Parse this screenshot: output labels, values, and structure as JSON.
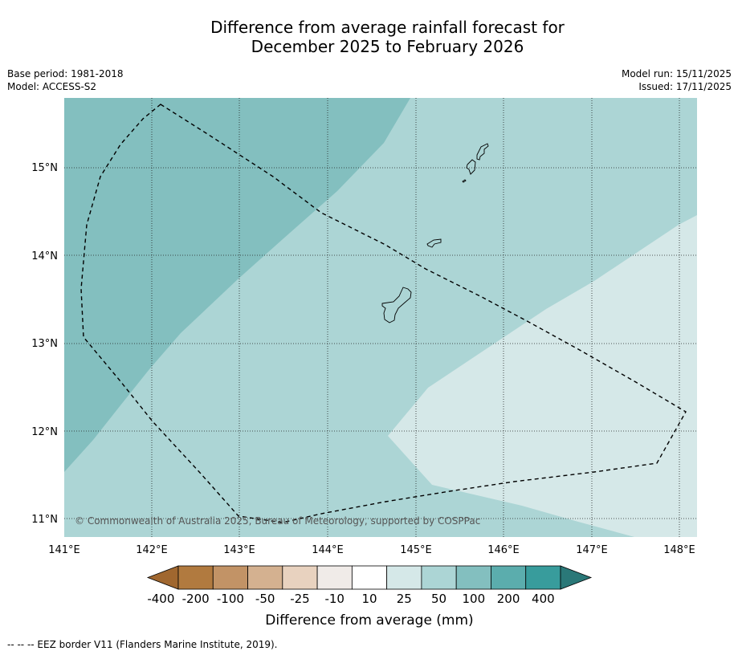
{
  "title": {
    "line1": "Difference from average rainfall forecast for",
    "line2": "December 2025 to February 2026"
  },
  "meta": {
    "base_period": "Base period: 1981-2018",
    "model": "Model: ACCESS-S2",
    "model_run": "Model run: 15/11/2025",
    "issued": "Issued: 17/11/2025"
  },
  "map": {
    "lon_labels": [
      "141°E",
      "142°E",
      "143°E",
      "144°E",
      "145°E",
      "146°E",
      "147°E",
      "148°E"
    ],
    "lat_labels": [
      "15°N",
      "14°N",
      "13°N",
      "12°N",
      "11°N"
    ],
    "copyright": "© Commonwealth of Australia 2025, Bureau of Meteorology, supported by COSPPac",
    "category_colors": {
      "10_to_25": "#d5e8e8",
      "25_to_50": "#acd5d5",
      "50_to_100": "#83bfbf"
    }
  },
  "colorbar": {
    "ticks": [
      "-400",
      "-200",
      "-100",
      "-50",
      "-25",
      "-10",
      "10",
      "25",
      "50",
      "100",
      "200",
      "400"
    ],
    "colors": [
      "#b17a3f",
      "#c29366",
      "#d4b190",
      "#e8d2bf",
      "#f0ebe8",
      "#ffffff",
      "#d5e8e8",
      "#acd5d5",
      "#83bfbf",
      "#5badad",
      "#389c9c"
    ],
    "under_color": "#a0672f",
    "over_color": "#2a7878",
    "label": "Difference from average (mm)"
  },
  "footer": "--  --  -- EEZ border V11 (Flanders Marine Institute, 2019)."
}
